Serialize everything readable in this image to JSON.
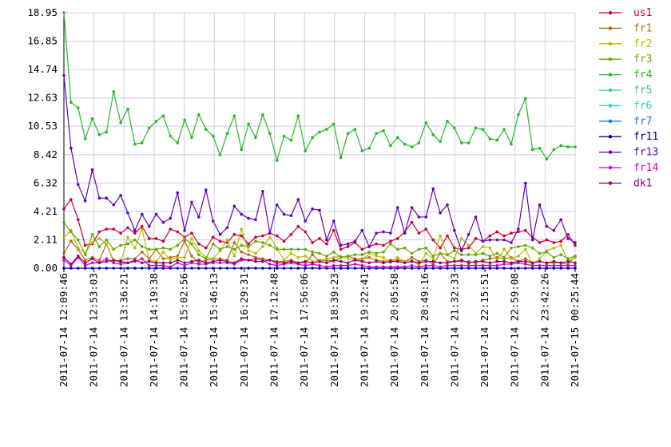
{
  "chart_data": {
    "type": "line",
    "title": "",
    "xlabel": "",
    "ylabel": "",
    "ylim": [
      0,
      18.95
    ],
    "y_ticks": [
      "0.00",
      "2.11",
      "4.21",
      "6.32",
      "8.42",
      "10.53",
      "12.63",
      "14.74",
      "16.85",
      "18.95"
    ],
    "x_ticks": [
      "2011-07-14 12:09:46",
      "2011-07-14 12:53:03",
      "2011-07-14 13:36:21",
      "2011-07-14 14:19:38",
      "2011-07-14 15:02:56",
      "2011-07-14 15:46:13",
      "2011-07-14 16:29:31",
      "2011-07-14 17:12:48",
      "2011-07-14 17:56:06",
      "2011-07-14 18:39:23",
      "2011-07-14 19:22:41",
      "2011-07-14 20:05:58",
      "2011-07-14 20:49:16",
      "2011-07-14 21:32:33",
      "2011-07-14 22:15:51",
      "2011-07-14 22:59:08",
      "2011-07-14 23:42:26",
      "2011-07-15 00:25:44"
    ],
    "grid": true,
    "legend_position": "right",
    "series": [
      {
        "name": "us1",
        "color": "#cc0033",
        "values": [
          4.4,
          5.1,
          3.6,
          1.7,
          1.8,
          2.7,
          2.9,
          2.9,
          2.6,
          3.0,
          2.6,
          3.1,
          2.2,
          2.2,
          2.0,
          2.9,
          2.7,
          2.3,
          2.6,
          1.8,
          1.5,
          2.3,
          2.0,
          1.9,
          2.5,
          2.4,
          1.8,
          2.3,
          2.4,
          2.6,
          2.4,
          2.0,
          2.5,
          3.1,
          2.7,
          1.9,
          2.2,
          1.8,
          2.8,
          1.4,
          1.6,
          1.9,
          1.4,
          1.6,
          1.8,
          1.7,
          2.0,
          2.2,
          2.7,
          3.4,
          2.6,
          2.9,
          2.1,
          1.5,
          2.4,
          1.5,
          1.4,
          1.5,
          2.2,
          2.0,
          2.4,
          2.7,
          2.4,
          2.6,
          2.7,
          2.8,
          2.3,
          1.9,
          2.1,
          1.9,
          2.0,
          2.5,
          1.7
        ]
      },
      {
        "name": "fr1",
        "color": "#bb6611",
        "values": [
          1.1,
          2.0,
          1.4,
          0.6,
          0.8,
          0.6,
          1.8,
          0.5,
          0.6,
          0.7,
          0.7,
          1.2,
          0.7,
          1.4,
          0.7,
          0.8,
          0.9,
          2.0,
          0.9,
          0.4,
          0.6,
          0.7,
          0.7,
          0.6,
          1.9,
          1.2,
          1.0,
          0.8,
          0.7,
          0.6,
          0.5,
          0.5,
          0.6,
          0.4,
          0.4,
          1.0,
          0.5,
          0.6,
          0.5,
          0.8,
          0.9,
          0.7,
          0.7,
          0.8,
          0.6,
          0.5,
          0.6,
          0.6,
          0.5,
          0.8,
          0.5,
          0.6,
          0.3,
          1.1,
          0.5,
          0.5,
          0.5,
          0.5,
          0.4,
          0.6,
          0.7,
          0.8,
          0.7,
          0.8,
          0.5,
          0.7,
          0.4,
          0.5,
          0.4,
          0.4,
          0.4,
          0.3,
          0.9
        ]
      },
      {
        "name": "fr2",
        "color": "#bbbb00",
        "values": [
          2.3,
          2.8,
          1.5,
          1.1,
          1.9,
          2.2,
          1.8,
          0.6,
          0.4,
          2.3,
          1.5,
          2.9,
          0.6,
          0.5,
          1.2,
          0.6,
          0.8,
          0.8,
          2.2,
          1.3,
          0.8,
          0.7,
          1.3,
          2.1,
          0.9,
          2.9,
          1.3,
          1.1,
          1.6,
          2.3,
          1.5,
          0.6,
          1.1,
          0.8,
          0.9,
          0.5,
          0.6,
          0.7,
          0.8,
          0.9,
          0.7,
          0.6,
          0.6,
          1.1,
          0.9,
          0.8,
          0.4,
          0.8,
          0.5,
          0.6,
          0.2,
          1.1,
          0.7,
          2.4,
          1.0,
          0.7,
          2.2,
          1.7,
          1.1,
          1.6,
          1.5,
          0.6,
          1.4,
          0.7,
          0.9,
          1.4,
          0.3,
          0.7,
          1.3,
          1.5,
          1.7,
          0.5,
          0.8
        ]
      },
      {
        "name": "fr3",
        "color": "#66aa00",
        "values": [
          3.4,
          2.7,
          2.1,
          1.0,
          2.5,
          1.6,
          2.1,
          1.4,
          1.7,
          1.8,
          2.1,
          1.6,
          1.4,
          1.4,
          1.5,
          1.4,
          1.7,
          2.2,
          1.8,
          1.0,
          0.7,
          1.8,
          1.4,
          1.6,
          1.4,
          1.7,
          1.6,
          2.0,
          1.9,
          1.7,
          1.4,
          1.4,
          1.4,
          1.4,
          1.4,
          1.2,
          1.1,
          0.9,
          1.2,
          0.8,
          0.9,
          1.0,
          1.0,
          1.2,
          1.1,
          1.2,
          1.8,
          1.4,
          1.5,
          1.1,
          1.4,
          1.5,
          0.9,
          1.1,
          1.0,
          1.3,
          1.0,
          1.0,
          1.0,
          1.1,
          0.9,
          1.1,
          0.8,
          1.5,
          1.6,
          1.7,
          1.5,
          1.1,
          1.2,
          0.8,
          1.0,
          0.7,
          0.9
        ]
      },
      {
        "name": "fr4",
        "color": "#22bb22",
        "values": [
          18.95,
          12.3,
          11.9,
          9.6,
          11.1,
          9.9,
          10.1,
          13.1,
          10.8,
          11.8,
          9.2,
          9.3,
          10.4,
          10.9,
          11.3,
          9.8,
          9.3,
          11.0,
          9.7,
          11.4,
          10.3,
          9.8,
          8.4,
          10.0,
          11.3,
          8.8,
          10.7,
          9.7,
          11.4,
          10.0,
          8.0,
          9.8,
          9.5,
          11.3,
          8.7,
          9.7,
          10.1,
          10.3,
          10.7,
          8.2,
          10.0,
          10.3,
          8.7,
          8.9,
          10.0,
          10.2,
          9.1,
          9.7,
          9.2,
          9.0,
          9.3,
          10.8,
          9.9,
          9.4,
          10.9,
          10.4,
          9.3,
          9.3,
          10.4,
          10.3,
          9.6,
          9.5,
          10.3,
          9.2,
          11.4,
          12.6,
          8.8,
          8.9,
          8.1,
          8.8,
          9.1,
          9.0,
          9.0
        ]
      },
      {
        "name": "fr5",
        "color": "#33cc77",
        "values": []
      },
      {
        "name": "fr6",
        "color": "#33cccc",
        "values": []
      },
      {
        "name": "fr7",
        "color": "#2277cc",
        "values": []
      },
      {
        "name": "fr11",
        "color": "#000099",
        "values": [
          0.0,
          0.0,
          0.0,
          0.0,
          0.0,
          0.0,
          0.0,
          0.0,
          0.0,
          0.0,
          0.0,
          0.0,
          0.0,
          0.0,
          0.0,
          0.0,
          0.0,
          0.0,
          0.0,
          0.0,
          0.0,
          0.0,
          0.0,
          0.0,
          0.0,
          0.0,
          0.0,
          0.0,
          0.0,
          0.0,
          0.0,
          0.0,
          0.0,
          0.0,
          0.0,
          0.0,
          0.0,
          0.0,
          0.0,
          0.0,
          0.0,
          0.0,
          0.0,
          0.0,
          0.0,
          0.0,
          0.0,
          0.0,
          0.0,
          0.0,
          0.0,
          0.0,
          0.0,
          0.0,
          0.0,
          0.0,
          0.0,
          0.0,
          0.0,
          0.0,
          0.0,
          0.0,
          0.0,
          0.0,
          0.0,
          0.0,
          0.0,
          0.0,
          0.0,
          0.0,
          0.0,
          0.0,
          0.0
        ]
      },
      {
        "name": "fr13",
        "color": "#6600bb",
        "values": [
          14.3,
          8.9,
          6.2,
          5.0,
          7.3,
          5.2,
          5.2,
          4.7,
          5.4,
          4.1,
          2.8,
          4.0,
          3.1,
          4.0,
          3.4,
          3.7,
          5.6,
          2.8,
          4.9,
          3.8,
          5.8,
          3.5,
          2.5,
          3.0,
          4.6,
          4.0,
          3.7,
          3.6,
          5.7,
          2.6,
          4.7,
          4.0,
          3.9,
          5.1,
          3.5,
          4.4,
          4.3,
          2.1,
          3.5,
          1.7,
          1.8,
          2.0,
          2.8,
          1.6,
          2.6,
          2.7,
          2.6,
          4.5,
          2.6,
          4.5,
          3.8,
          3.8,
          5.9,
          4.1,
          4.7,
          2.8,
          1.3,
          2.5,
          3.8,
          2.0,
          2.1,
          2.1,
          2.1,
          1.9,
          2.9,
          6.3,
          2.1,
          4.7,
          3.1,
          2.8,
          3.6,
          2.2,
          1.9
        ]
      },
      {
        "name": "fr14",
        "color": "#cc00cc",
        "values": [
          0.6,
          0.2,
          0.8,
          0.2,
          0.4,
          0.4,
          0.7,
          0.4,
          0.3,
          0.4,
          0.5,
          0.7,
          0.2,
          0.2,
          0.2,
          0.1,
          0.4,
          0.2,
          0.4,
          0.3,
          0.3,
          0.4,
          0.4,
          0.4,
          0.3,
          0.6,
          0.6,
          0.7,
          0.6,
          0.3,
          0.2,
          0.3,
          0.4,
          0.3,
          0.2,
          0.3,
          0.2,
          0.1,
          0.2,
          0.2,
          0.2,
          0.3,
          0.2,
          0.1,
          0.1,
          0.1,
          0.1,
          0.1,
          0.1,
          0.2,
          0.1,
          0.2,
          0.2,
          0.1,
          0.2,
          0.2,
          0.2,
          0.2,
          0.2,
          0.2,
          0.2,
          0.2,
          0.3,
          0.3,
          0.4,
          0.3,
          0.2,
          0.2,
          0.2,
          0.2,
          0.2,
          0.2,
          0.2
        ]
      },
      {
        "name": "dk1",
        "color": "#990066",
        "values": [
          0.8,
          0.3,
          0.9,
          0.4,
          0.7,
          0.4,
          0.5,
          0.6,
          0.5,
          0.4,
          0.6,
          0.4,
          0.5,
          0.4,
          0.4,
          0.4,
          0.6,
          0.4,
          0.5,
          0.6,
          0.4,
          0.5,
          0.6,
          0.5,
          0.4,
          0.7,
          0.6,
          0.5,
          0.5,
          0.6,
          0.4,
          0.4,
          0.5,
          0.4,
          0.5,
          0.4,
          0.5,
          0.4,
          0.6,
          0.5,
          0.4,
          0.6,
          0.5,
          0.4,
          0.5,
          0.4,
          0.5,
          0.5,
          0.4,
          0.5,
          0.4,
          0.5,
          0.5,
          0.4,
          0.4,
          0.5,
          0.6,
          0.4,
          0.5,
          0.5,
          0.4,
          0.5,
          0.5,
          0.4,
          0.5,
          0.5,
          0.4,
          0.5,
          0.4,
          0.5,
          0.4,
          0.5,
          0.4
        ]
      }
    ]
  }
}
